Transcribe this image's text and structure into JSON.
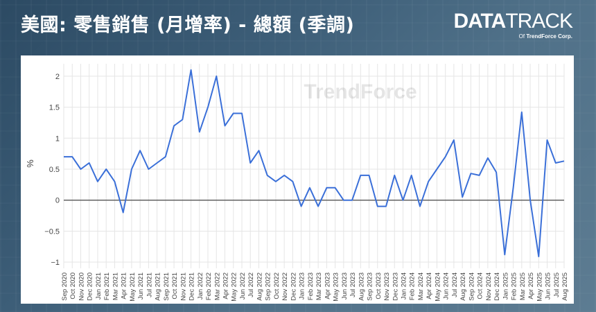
{
  "header": {
    "title": "美國: 零售銷售 (月增率) - 總額 (季調)",
    "brand_data": "DATA",
    "brand_track": "TRACK",
    "brand_of": "Of",
    "brand_company": "TrendForce Corp."
  },
  "watermark": "TrendForce",
  "colors": {
    "line": "#3a6fd8",
    "zero_line": "#555555",
    "grid": "#e5e5e5"
  },
  "chart_data": {
    "type": "line",
    "title": "",
    "ylabel": "%",
    "xlabel": "",
    "ylim": [
      -1.1,
      2.2
    ],
    "yticks": [
      2,
      1.5,
      1,
      0.5,
      0,
      -0.5,
      -1
    ],
    "ytick_labels": [
      "2",
      "1.5",
      "1",
      "0.5",
      "0",
      "−0.5",
      "−1"
    ],
    "grid": true,
    "legend": "none",
    "x": [
      "Sep 2020",
      "Oct 2020",
      "Nov 2020",
      "Dec 2020",
      "Jan 2021",
      "Feb 2021",
      "Mar 2021",
      "Apr 2021",
      "May 2021",
      "Jun 2021",
      "Jul 2021",
      "Aug 2021",
      "Sep 2021",
      "Oct 2021",
      "Nov 2021",
      "Dec 2021",
      "Jan 2022",
      "Feb 2022",
      "Mar 2022",
      "Apr 2022",
      "May 2022",
      "Jun 2022",
      "Jul 2022",
      "Aug 2022",
      "Sep 2022",
      "Oct 2022",
      "Nov 2022",
      "Dec 2022",
      "Jan 2023",
      "Feb 2023",
      "Mar 2023",
      "Apr 2023",
      "May 2023",
      "Jun 2023",
      "Jul 2023",
      "Aug 2023",
      "Sep 2023",
      "Oct 2023",
      "Nov 2023",
      "Dec 2023",
      "Jan 2024",
      "Feb 2024",
      "Mar 2024",
      "Apr 2024",
      "May 2024",
      "Jun 2024",
      "Jul 2024",
      "Aug 2024",
      "Sep 2024",
      "Oct 2024",
      "Nov 2024",
      "Dec 2024",
      "Jan 2025",
      "Feb 2025",
      "Mar 2025",
      "Apr 2025",
      "May 2025",
      "Jun 2025",
      "Jul 2025",
      "Aug 2025"
    ],
    "series": [
      {
        "values": [
          0.7,
          0.7,
          0.5,
          0.6,
          0.3,
          0.5,
          0.3,
          -0.2,
          0.5,
          0.8,
          0.5,
          0.6,
          0.7,
          1.2,
          1.3,
          2.1,
          1.1,
          1.5,
          2.0,
          1.2,
          1.4,
          1.4,
          0.6,
          0.8,
          0.4,
          0.3,
          0.4,
          0.3,
          -0.1,
          0.2,
          -0.1,
          0.2,
          0.2,
          0.0,
          0.0,
          0.4,
          0.4,
          -0.1,
          -0.1,
          0.4,
          0.0,
          0.4,
          -0.1,
          0.3,
          0.5,
          0.7,
          0.97,
          0.05,
          0.43,
          0.4,
          0.68,
          0.45,
          -0.88,
          0.2,
          1.42,
          0.0,
          -0.91,
          0.97,
          0.6,
          0.63
        ]
      }
    ]
  }
}
